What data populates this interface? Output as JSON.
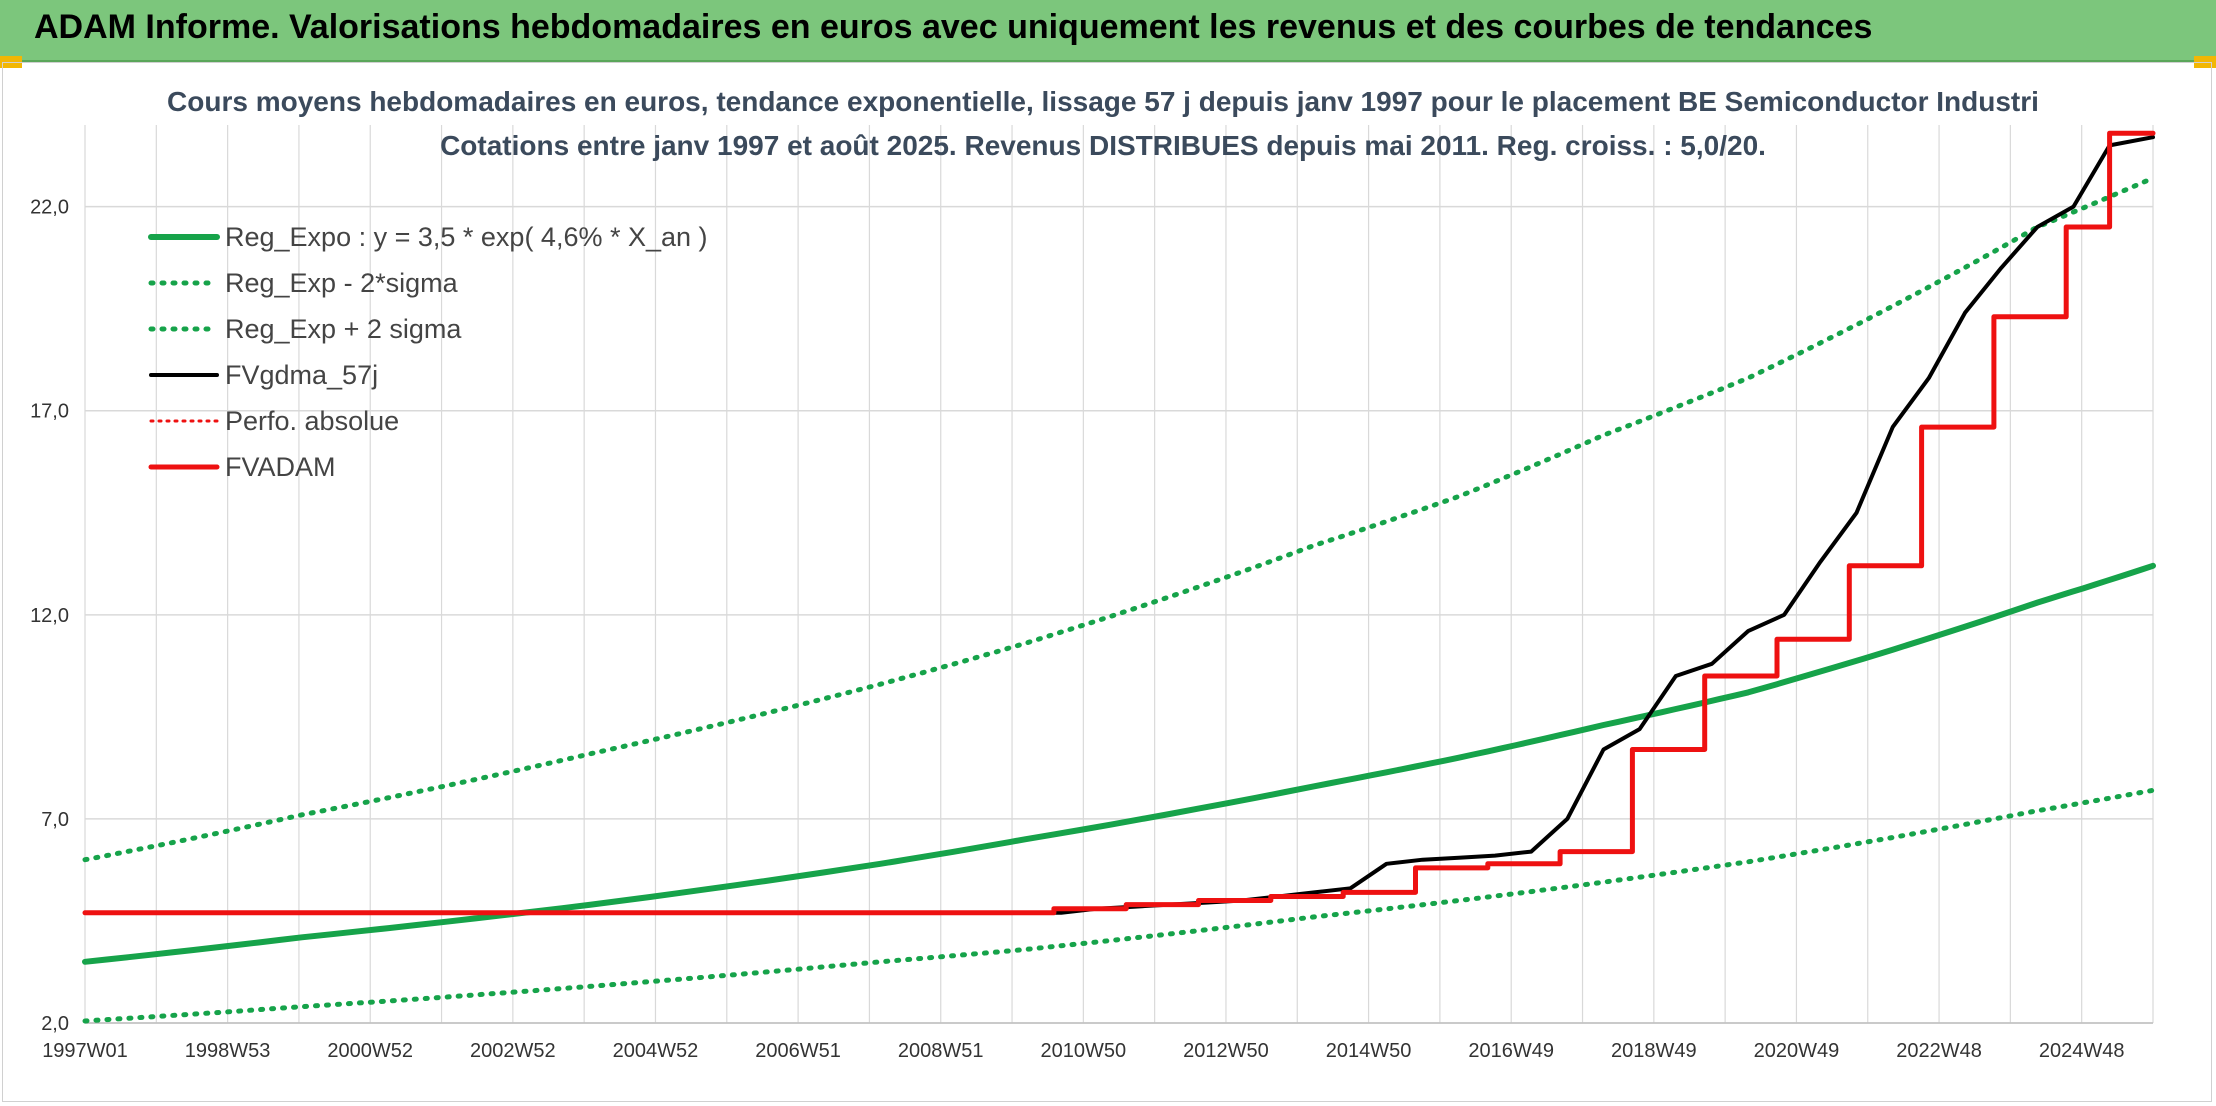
{
  "header": {
    "title": "ADAM Informe. Valorisations hebdomadaires en euros avec uniquement les revenus et des courbes de tendances"
  },
  "colors": {
    "header_bg": "#7cc67c",
    "green": "#16a34a",
    "red": "#ee1111",
    "black": "#000000",
    "grid": "#d9d9d9"
  },
  "chart_data": {
    "type": "line",
    "title": "Cours moyens hebdomadaires en euros, tendance exponentielle, lissage 57 j depuis janv 1997 pour le placement BE Semiconductor Industri",
    "subtitle": "Cotations entre janv 1997 et août 2025. Revenus DISTRIBUES depuis mai 2011. Reg. croiss. : 5,0/20.",
    "xlabel": "",
    "ylabel": "",
    "ylim": [
      2,
      24
    ],
    "y_ticks": [
      "2,0",
      "7,0",
      "12,0",
      "17,0",
      "22,0"
    ],
    "x_range": [
      1997.0,
      2025.6
    ],
    "x_ticks": [
      "1997W01",
      "1998W53",
      "2000W52",
      "2002W52",
      "2004W52",
      "2006W51",
      "2008W51",
      "2010W50",
      "2012W50",
      "2014W50",
      "2016W49",
      "2018W49",
      "2020W49",
      "2022W48",
      "2024W48"
    ],
    "legend_position": "top-left",
    "grid": true,
    "series": [
      {
        "name": "Reg_Expo : y = 3,5 * exp( 4,6% *  X_an )",
        "style": "solid-green",
        "x": [
          1997.0,
          2000.0,
          2004.0,
          2008.0,
          2010.0,
          2014.0,
          2016.0,
          2018.0,
          2020.0,
          2024.0,
          2025.6
        ],
        "values": [
          3.5,
          4.1,
          4.9,
          5.9,
          6.5,
          7.8,
          8.5,
          9.3,
          10.1,
          12.3,
          13.2
        ]
      },
      {
        "name": "Reg_Exp - 2*sigma",
        "style": "dotted-green",
        "x": [
          1997.0,
          2000.0,
          2004.0,
          2008.0,
          2010.0,
          2014.0,
          2016.0,
          2018.0,
          2020.0,
          2024.0,
          2025.6
        ],
        "values": [
          2.05,
          2.4,
          2.9,
          3.5,
          3.8,
          4.6,
          5.0,
          5.45,
          5.95,
          7.2,
          7.7
        ]
      },
      {
        "name": "Reg_Exp + 2 sigma",
        "style": "dotted-green",
        "x": [
          1997.0,
          2000.0,
          2004.0,
          2008.0,
          2010.0,
          2014.0,
          2016.0,
          2018.0,
          2020.0,
          2024.0,
          2025.6
        ],
        "values": [
          6.0,
          7.1,
          8.6,
          10.3,
          11.3,
          13.7,
          14.9,
          16.4,
          17.8,
          21.5,
          22.7
        ]
      },
      {
        "name": "FVgdma_57j",
        "style": "solid-black",
        "x": [
          1997.0,
          2010.5,
          2011.0,
          2011.5,
          2012.0,
          2012.5,
          2013.0,
          2013.5,
          2014.0,
          2014.5,
          2015.0,
          2015.5,
          2016.0,
          2016.5,
          2017.0,
          2017.5,
          2018.0,
          2018.5,
          2019.0,
          2019.5,
          2020.0,
          2020.5,
          2021.0,
          2021.5,
          2022.0,
          2022.5,
          2023.0,
          2023.5,
          2024.0,
          2024.5,
          2025.0,
          2025.6
        ],
        "values": [
          4.7,
          4.7,
          4.8,
          4.85,
          4.9,
          4.95,
          5.0,
          5.1,
          5.2,
          5.3,
          5.9,
          6.0,
          6.05,
          6.1,
          6.2,
          7.0,
          8.7,
          9.2,
          10.5,
          10.8,
          11.6,
          12.0,
          13.3,
          14.5,
          16.6,
          17.8,
          19.4,
          20.5,
          21.5,
          22.0,
          23.5,
          23.7
        ]
      },
      {
        "name": "Perfo. absolue",
        "style": "dotted-red",
        "x": [],
        "values": []
      },
      {
        "name": "FVADAM",
        "style": "solid-red",
        "x": [
          1997.0,
          2010.4,
          2010.4,
          2011.4,
          2011.4,
          2012.4,
          2012.4,
          2013.4,
          2013.4,
          2014.4,
          2014.4,
          2015.4,
          2015.4,
          2016.4,
          2016.4,
          2017.4,
          2017.4,
          2018.4,
          2018.4,
          2019.4,
          2019.4,
          2020.4,
          2020.4,
          2021.4,
          2021.4,
          2022.4,
          2022.4,
          2023.4,
          2023.4,
          2024.4,
          2024.4,
          2025.0,
          2025.0,
          2025.6
        ],
        "values": [
          4.7,
          4.7,
          4.8,
          4.8,
          4.9,
          4.9,
          5.0,
          5.0,
          5.1,
          5.1,
          5.2,
          5.2,
          5.8,
          5.8,
          5.9,
          5.9,
          6.2,
          6.2,
          8.7,
          8.7,
          10.5,
          10.5,
          11.4,
          11.4,
          13.2,
          13.2,
          16.6,
          16.6,
          19.3,
          19.3,
          21.5,
          21.5,
          23.8,
          23.8
        ]
      }
    ]
  }
}
